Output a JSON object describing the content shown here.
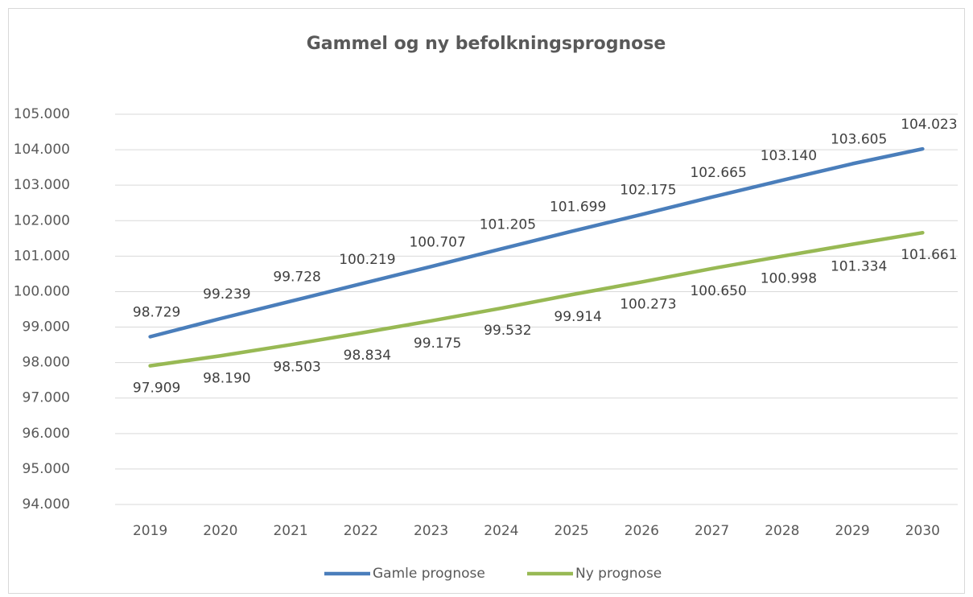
{
  "chart_data": {
    "type": "line",
    "title": "Gammel og ny befolkningsprognose",
    "categories": [
      "2019",
      "2020",
      "2021",
      "2022",
      "2023",
      "2024",
      "2025",
      "2026",
      "2027",
      "2028",
      "2029",
      "2030"
    ],
    "series": [
      {
        "name": "Gamle prognose",
        "color": "#4a7ebb",
        "values": [
          98729,
          99239,
          99728,
          100219,
          100707,
          101205,
          101699,
          102175,
          102665,
          103140,
          103605,
          104023
        ],
        "value_labels": [
          "98.729",
          "99.239",
          "99.728",
          "100.219",
          "100.707",
          "101.205",
          "101.699",
          "102.175",
          "102.665",
          "103.140",
          "103.605",
          "104.023"
        ]
      },
      {
        "name": "Ny prognose",
        "color": "#98b954",
        "values": [
          97909,
          98190,
          98503,
          98834,
          99175,
          99532,
          99914,
          100273,
          100650,
          100998,
          101334,
          101661
        ],
        "value_labels": [
          "97.909",
          "98.190",
          "98.503",
          "98.834",
          "99.175",
          "99.532",
          "99.914",
          "100.273",
          "100.650",
          "100.998",
          "101.334",
          "101.661"
        ]
      }
    ],
    "ylim": [
      94000,
      105000
    ],
    "yticks": [
      {
        "value": 94000,
        "label": "94.000"
      },
      {
        "value": 95000,
        "label": "95.000"
      },
      {
        "value": 96000,
        "label": "96.000"
      },
      {
        "value": 97000,
        "label": "97.000"
      },
      {
        "value": 98000,
        "label": "98.000"
      },
      {
        "value": 99000,
        "label": "99.000"
      },
      {
        "value": 100000,
        "label": "100.000"
      },
      {
        "value": 101000,
        "label": "101.000"
      },
      {
        "value": 102000,
        "label": "102.000"
      },
      {
        "value": 103000,
        "label": "103.000"
      },
      {
        "value": 104000,
        "label": "104.000"
      },
      {
        "value": 105000,
        "label": "105.000"
      }
    ],
    "grid": true,
    "legend": "bottom"
  }
}
